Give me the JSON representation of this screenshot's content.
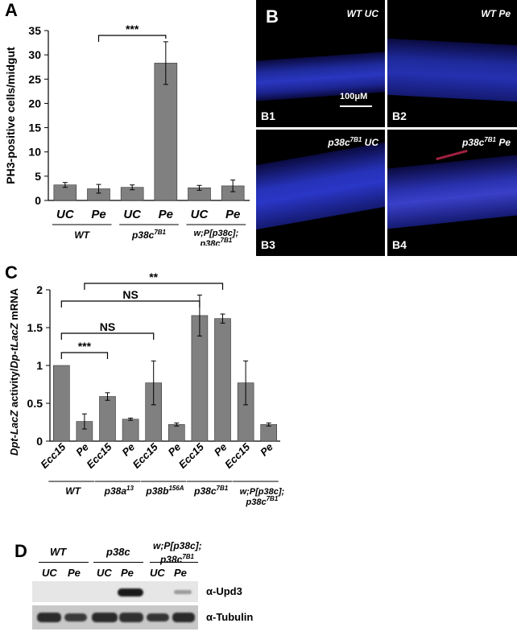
{
  "panels": {
    "a": {
      "letter": "A",
      "chart_data": {
        "type": "bar",
        "ylabel": "PH3-positive cells/midgut",
        "ylim": [
          0,
          35
        ],
        "yticks": [
          "0",
          "5",
          "10",
          "15",
          "20",
          "25",
          "30",
          "35"
        ],
        "categories": [
          "UC",
          "Pe",
          "UC",
          "Pe",
          "UC",
          "Pe"
        ],
        "values": [
          3.2,
          2.4,
          2.7,
          28.3,
          2.6,
          3.0
        ],
        "errors": [
          0.5,
          0.9,
          0.5,
          4.4,
          0.5,
          1.2
        ],
        "groups": [
          "WT",
          "p38c",
          "w;P[p38c];",
          "p38c"
        ],
        "group_sup": [
          "7B1",
          "7B1"
        ],
        "sig_label": "***",
        "bar_color": "#808080"
      }
    },
    "b": {
      "letter": "B",
      "images": [
        {
          "id": "B1",
          "label": "WT UC",
          "scale": "100μM"
        },
        {
          "id": "B2",
          "label": "WT Pe"
        },
        {
          "id": "B3",
          "genotype": "p38c",
          "sup": "7B1",
          "cond": " UC"
        },
        {
          "id": "B4",
          "genotype": "p38c",
          "sup": "7B1",
          "cond": " Pe"
        }
      ]
    },
    "c": {
      "letter": "C",
      "chart_data": {
        "type": "bar",
        "ylabel_a": "Dpt-LacZ",
        "ylabel_b": " activity/",
        "ylabel_c": "Dp-tLacZ",
        "ylabel_d": " mRNA",
        "ylim": [
          0,
          2
        ],
        "yticks": [
          "0",
          "0.5",
          "1",
          "1.5",
          "2"
        ],
        "categories": [
          "Ecc15",
          "Pe",
          "Ecc15",
          "Pe",
          "Ecc15",
          "Pe",
          "Ecc15",
          "Pe",
          "Ecc15",
          "Pe"
        ],
        "values": [
          1.0,
          0.26,
          0.59,
          0.29,
          0.77,
          0.22,
          1.66,
          1.62,
          0.77,
          0.22
        ],
        "errors": [
          0,
          0.1,
          0.05,
          0.015,
          0.29,
          0.02,
          0.27,
          0.06,
          0.29,
          0.02
        ],
        "groups": [
          "WT",
          "p38a",
          "p38b",
          "p38c",
          "w;P[p38c];",
          "p38c"
        ],
        "group_sup": [
          "13",
          "156A",
          "7B1",
          "7B1"
        ],
        "sig": [
          "***",
          "NS",
          "NS",
          "**"
        ],
        "bar_color": "#808080"
      }
    },
    "d": {
      "letter": "D",
      "groups": [
        "WT",
        "p38c",
        "w;P[p38c];",
        "p38c"
      ],
      "group_sup": "7B1",
      "lanes": [
        "UC",
        "Pe",
        "UC",
        "Pe",
        "UC",
        "Pe"
      ],
      "rows": [
        "α-Upd3",
        "α-Tubulin"
      ]
    }
  }
}
